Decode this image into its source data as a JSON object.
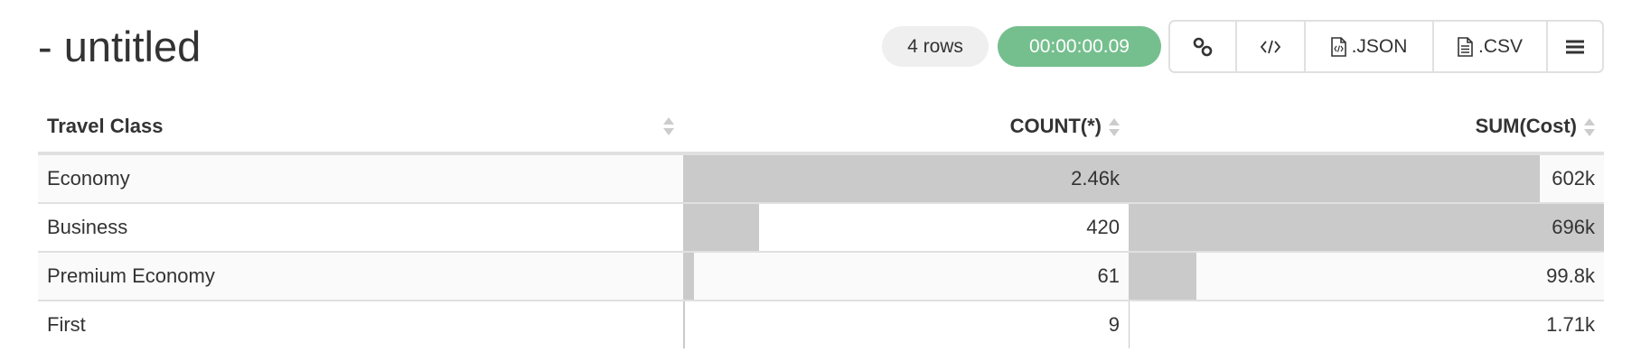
{
  "title": "- untitled",
  "toolbar": {
    "rows_badge": "4 rows",
    "timer": "00:00:00.09",
    "buttons": [
      {
        "icon": "link-icon",
        "label": ""
      },
      {
        "icon": "code-icon",
        "label": ""
      },
      {
        "icon": "json-file-icon",
        "label": ".JSON"
      },
      {
        "icon": "csv-file-icon",
        "label": ".CSV"
      },
      {
        "icon": "menu-icon",
        "label": ""
      }
    ]
  },
  "table": {
    "columns": [
      "Travel Class",
      "COUNT(*)",
      "SUM(Cost)"
    ],
    "rows": [
      {
        "class": "Economy",
        "count": "2.46k",
        "count_value": 2460,
        "sum": "602k",
        "sum_value": 602000
      },
      {
        "class": "Business",
        "count": "420",
        "count_value": 420,
        "sum": "696k",
        "sum_value": 696000
      },
      {
        "class": "Premium Economy",
        "count": "61",
        "count_value": 61,
        "sum": "99.8k",
        "sum_value": 99800
      },
      {
        "class": "First",
        "count": "9",
        "count_value": 9,
        "sum": "1.71k",
        "sum_value": 1710
      }
    ]
  },
  "colors": {
    "bar": "#cacaca",
    "timer": "#75bf8e",
    "badge": "#efefef"
  }
}
